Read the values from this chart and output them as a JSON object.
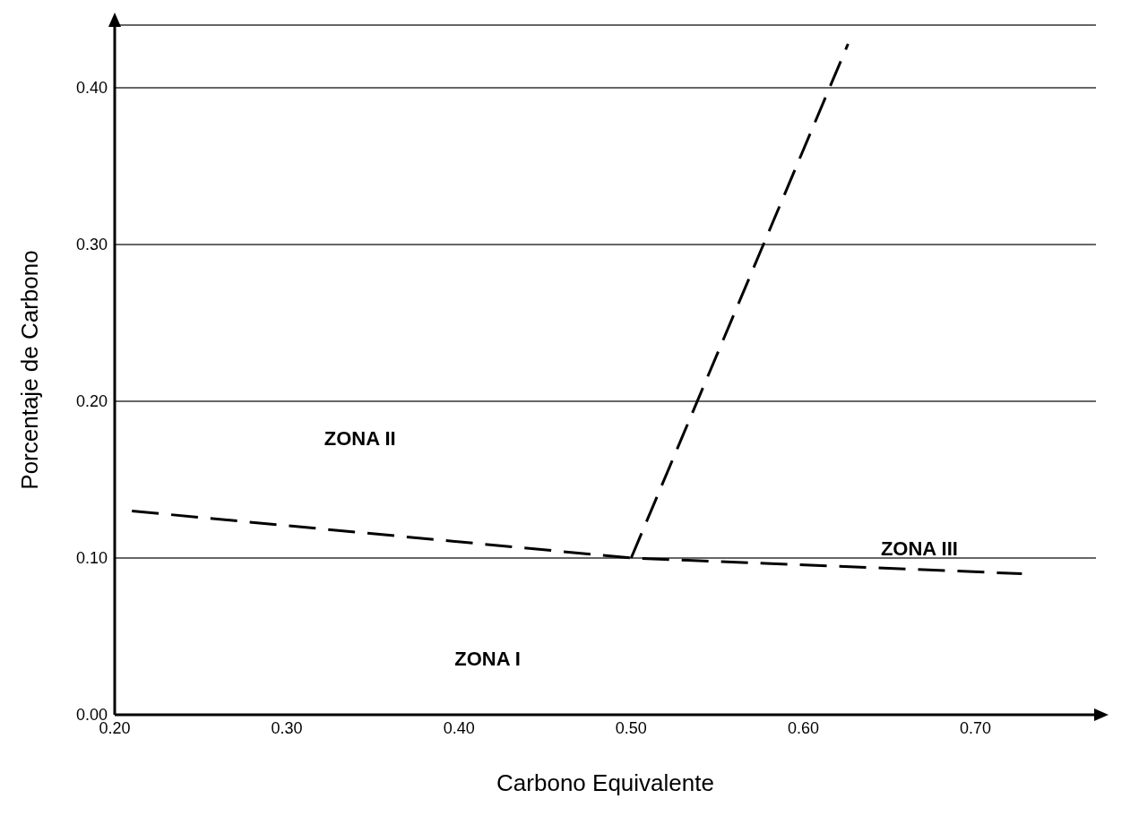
{
  "chart_data": {
    "type": "line",
    "xlabel": "Carbono Equivalente",
    "ylabel": "Porcentaje de Carbono",
    "xlim": [
      0.2,
      0.77
    ],
    "ylim": [
      0,
      0.44
    ],
    "xticks": [
      {
        "value": 0.2,
        "label": "0.20"
      },
      {
        "value": 0.3,
        "label": "0.30"
      },
      {
        "value": 0.4,
        "label": "0.40"
      },
      {
        "value": 0.5,
        "label": "0.50"
      },
      {
        "value": 0.6,
        "label": "0.60"
      },
      {
        "value": 0.7,
        "label": "0.70"
      }
    ],
    "yticks": [
      {
        "value": 0,
        "label": "0.00"
      },
      {
        "value": 0.1,
        "label": "0.10"
      },
      {
        "value": 0.2,
        "label": "0.20"
      },
      {
        "value": 0.3,
        "label": "0.30"
      },
      {
        "value": 0.4,
        "label": "0.40"
      }
    ],
    "grid": "y",
    "marker": "none",
    "line_style": "dashed",
    "series": [
      {
        "color": "#000000",
        "x": [
          0.21,
          0.5,
          0.727
        ],
        "values": [
          0.13,
          0.1,
          0.09
        ]
      },
      {
        "color": "#000000",
        "x": [
          0.5,
          0.626
        ],
        "values": [
          0.1,
          0.428
        ]
      }
    ],
    "annotations": [
      "ZONA I",
      "ZONA II",
      "ZONA III"
    ]
  }
}
